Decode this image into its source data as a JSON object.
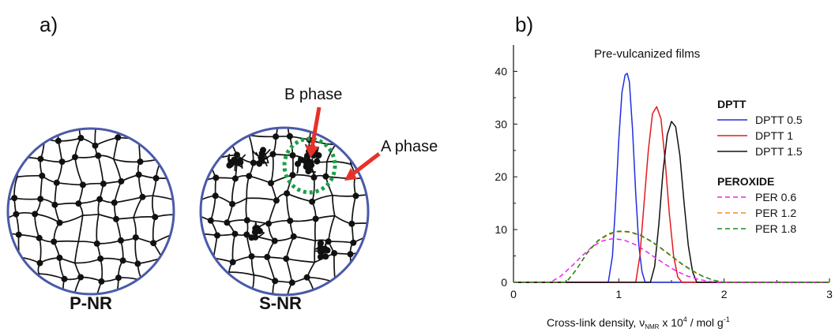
{
  "panel_a": {
    "label": "a)",
    "left_caption": "P-NR",
    "right_caption": "S-NR",
    "b_phase_label": "B phase",
    "a_phase_label": "A phase",
    "circle_color": "#4a5aa8",
    "arrow_color": "#e8312a",
    "highlight_color": "#1aa04a"
  },
  "chart_data": {
    "type": "line",
    "panel_label": "b)",
    "title": "Pre-vulcanized films",
    "xlabel": "Cross-link density, ν",
    "xlabel_sub": "NMR",
    "xlabel_unit_pre": " x 10",
    "xlabel_sup": "4",
    "xlabel_unit_post": " / mol g",
    "xlabel_exp": "-1",
    "ylabel": "",
    "xlim": [
      0,
      3
    ],
    "ylim": [
      0,
      45
    ],
    "xticks": [
      0,
      1,
      2,
      3
    ],
    "yticks": [
      0,
      10,
      20,
      30,
      40
    ],
    "grid": false,
    "legend_position": "right",
    "legend_groups": [
      {
        "title": "DPTT",
        "entries": [
          0,
          1,
          2
        ]
      },
      {
        "title": "PEROXIDE",
        "entries": [
          3,
          4,
          5
        ]
      }
    ],
    "series": [
      {
        "name": "DPTT 0.5",
        "color": "#1f2fe0",
        "style": "solid",
        "x": [
          0.0,
          0.9,
          0.94,
          0.97,
          1.0,
          1.03,
          1.06,
          1.08,
          1.1,
          1.13,
          1.16,
          1.19,
          1.22,
          1.25,
          3.0
        ],
        "y": [
          0,
          0,
          5,
          15,
          27,
          36,
          39.3,
          39.6,
          38,
          29,
          17,
          7,
          2,
          0,
          0
        ]
      },
      {
        "name": "DPTT 1",
        "color": "#e41a1c",
        "style": "solid",
        "x": [
          0.0,
          1.16,
          1.2,
          1.24,
          1.28,
          1.32,
          1.36,
          1.4,
          1.44,
          1.48,
          1.52,
          1.56,
          1.6,
          3.0
        ],
        "y": [
          0,
          0,
          5,
          15,
          25,
          32,
          33.3,
          31,
          23,
          13,
          5,
          1,
          0,
          0
        ]
      },
      {
        "name": "DPTT 1.5",
        "color": "#111111",
        "style": "solid",
        "x": [
          0.0,
          1.3,
          1.34,
          1.38,
          1.42,
          1.46,
          1.5,
          1.54,
          1.58,
          1.62,
          1.66,
          1.7,
          1.74,
          3.0
        ],
        "y": [
          0,
          0,
          3,
          11,
          21,
          28,
          30.5,
          29.5,
          24,
          15,
          7,
          2,
          0,
          0
        ]
      },
      {
        "name": "PER 0.6",
        "color": "#ee22ee",
        "style": "dashed",
        "x": [
          0.0,
          0.35,
          0.45,
          0.55,
          0.65,
          0.75,
          0.85,
          0.95,
          1.05,
          1.15,
          1.25,
          1.35,
          1.45,
          1.55,
          1.65,
          1.75,
          1.85,
          1.95,
          3.0
        ],
        "y": [
          0,
          0,
          1.2,
          3.0,
          5.0,
          6.8,
          7.9,
          8.3,
          8.0,
          7.2,
          6.0,
          4.6,
          3.3,
          2.1,
          1.2,
          0.6,
          0.2,
          0,
          0
        ]
      },
      {
        "name": "PER 1.2",
        "color": "#f28a1e",
        "style": "dashed",
        "x": [
          0.0,
          0.5,
          0.6,
          0.7,
          0.8,
          0.9,
          1.0,
          1.1,
          1.2,
          1.3,
          1.4,
          1.5,
          1.6,
          1.7,
          1.8,
          1.9,
          2.0,
          3.0
        ],
        "y": [
          0,
          0,
          2.5,
          5.5,
          7.8,
          9.0,
          9.6,
          9.5,
          8.9,
          7.8,
          6.4,
          4.9,
          3.4,
          2.1,
          1.1,
          0.4,
          0,
          0
        ]
      },
      {
        "name": "PER 1.8",
        "color": "#1e8a2a",
        "style": "dashed",
        "x": [
          0.0,
          0.5,
          0.6,
          0.7,
          0.8,
          0.9,
          1.0,
          1.1,
          1.2,
          1.3,
          1.4,
          1.5,
          1.6,
          1.7,
          1.8,
          1.9,
          2.0,
          3.0
        ],
        "y": [
          0,
          0,
          2.5,
          5.6,
          7.9,
          9.2,
          9.7,
          9.6,
          9.0,
          7.9,
          6.5,
          5.0,
          3.5,
          2.2,
          1.1,
          0.4,
          0,
          0
        ]
      }
    ]
  }
}
